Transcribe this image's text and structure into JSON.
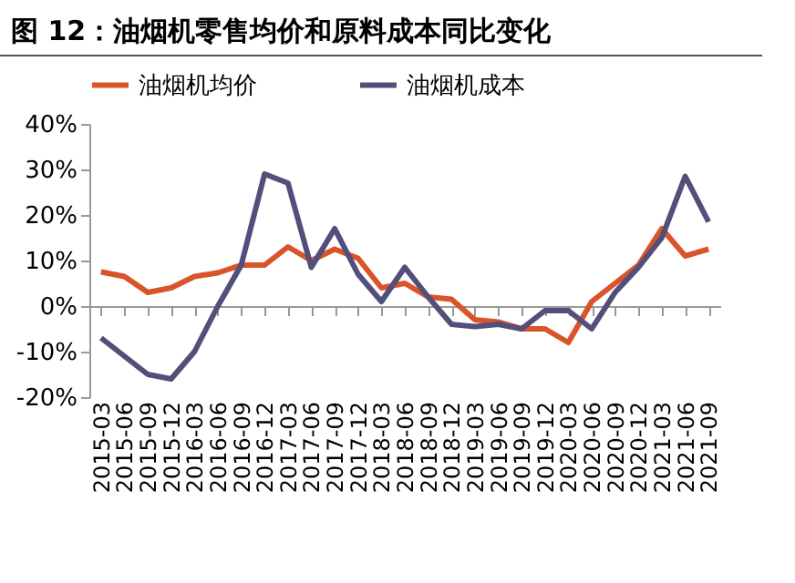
{
  "chart_data": {
    "type": "line",
    "title": "图 12：油烟机零售均价和原料成本同比变化",
    "categories": [
      "2015-03",
      "2015-06",
      "2015-09",
      "2015-12",
      "2016-03",
      "2016-06",
      "2016-09",
      "2016-12",
      "2017-03",
      "2017-06",
      "2017-09",
      "2017-12",
      "2018-03",
      "2018-06",
      "2018-09",
      "2018-12",
      "2019-03",
      "2019-06",
      "2019-09",
      "2019-12",
      "2020-03",
      "2020-06",
      "2020-09",
      "2020-12",
      "2021-03",
      "2021-06",
      "2021-09"
    ],
    "series": [
      {
        "name": "油烟机均价",
        "color": "#d9542a",
        "values": [
          7.5,
          6.5,
          3,
          4,
          6.5,
          7.3,
          9,
          9,
          13,
          10,
          12.5,
          10.5,
          4,
          5,
          2,
          1.5,
          -3,
          -3.5,
          -5,
          -5,
          -8,
          1,
          5,
          9,
          17,
          11,
          12.5
        ]
      },
      {
        "name": "油烟机成本",
        "color": "#52507a",
        "values": [
          -7,
          -11,
          -15,
          -16,
          -10,
          0,
          9,
          29,
          27,
          8.5,
          17,
          7,
          1,
          8.5,
          2,
          -4,
          -4.5,
          -4,
          -5,
          -1,
          -1,
          -5,
          3,
          8.5,
          15,
          28.5,
          18.5
        ]
      }
    ],
    "ylim": [
      -20,
      40
    ],
    "yticks": [
      {
        "value": -20,
        "label": "-20%"
      },
      {
        "value": -10,
        "label": "-10%"
      },
      {
        "value": 0,
        "label": "0%"
      },
      {
        "value": 10,
        "label": "10%"
      },
      {
        "value": 20,
        "label": "20%"
      },
      {
        "value": 30,
        "label": "30%"
      },
      {
        "value": 40,
        "label": "40%"
      }
    ],
    "legend": "top",
    "marker": "none",
    "line_style": "solid"
  }
}
